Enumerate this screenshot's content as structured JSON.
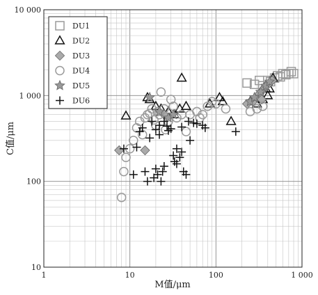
{
  "chart_data": {
    "type": "scatter",
    "title": "",
    "xlabel": "M值/μm",
    "ylabel": "C值/μm",
    "x_scale": "log",
    "y_scale": "log",
    "xlim": [
      1,
      1000
    ],
    "ylim": [
      10,
      10000
    ],
    "x_ticks": [
      "1",
      "10",
      "100",
      "1 000"
    ],
    "y_ticks": [
      "10",
      "100",
      "1 000",
      "10 000"
    ],
    "grid": true,
    "legend_position": "top-left",
    "series": [
      {
        "name": "DU1",
        "marker": "square",
        "color": "#9a9a9a",
        "x": [
          230,
          280,
          320,
          350,
          400,
          430,
          480,
          520,
          560,
          600,
          650,
          700,
          750,
          800
        ],
        "y": [
          1400,
          1350,
          1500,
          1300,
          1500,
          1450,
          1600,
          1700,
          1650,
          1800,
          1750,
          1800,
          1900,
          1800
        ]
      },
      {
        "name": "DU2",
        "marker": "triangle",
        "color": "#111111",
        "x": [
          9,
          16,
          17,
          20,
          23,
          28,
          33,
          38,
          40,
          45,
          85,
          110,
          120,
          150,
          250,
          300,
          350,
          380,
          400,
          420,
          460
        ],
        "y": [
          580,
          950,
          900,
          750,
          700,
          650,
          600,
          700,
          1600,
          750,
          800,
          950,
          850,
          500,
          850,
          800,
          900,
          1200,
          1000,
          1200,
          1600
        ]
      },
      {
        "name": "DU3",
        "marker": "diamond",
        "color": "#aaaaaa",
        "x": [
          7.5,
          15,
          25,
          230,
          270,
          300,
          320,
          340,
          360,
          380,
          420,
          450
        ],
        "y": [
          230,
          230,
          600,
          800,
          850,
          950,
          1050,
          900,
          1200,
          1300,
          1400,
          1500
        ]
      },
      {
        "name": "DU4",
        "marker": "circle",
        "color": "#9a9a9a",
        "x": [
          8,
          8.5,
          9,
          10,
          11,
          12,
          13,
          14,
          15,
          16,
          17,
          18,
          19,
          20,
          21,
          22,
          23,
          25,
          26,
          28,
          30,
          32,
          35,
          40,
          45,
          50,
          60,
          65,
          70,
          80,
          90,
          100,
          130,
          250,
          300,
          350
        ],
        "y": [
          65,
          130,
          190,
          240,
          300,
          420,
          500,
          350,
          550,
          600,
          620,
          700,
          520,
          450,
          650,
          600,
          1100,
          700,
          400,
          500,
          900,
          750,
          550,
          600,
          380,
          600,
          650,
          550,
          600,
          750,
          850,
          800,
          700,
          650,
          700,
          750
        ]
      },
      {
        "name": "DU5",
        "marker": "star",
        "color": "#999999",
        "x": [
          17,
          22,
          28,
          32,
          250,
          280,
          330,
          380,
          420
        ],
        "y": [
          950,
          650,
          550,
          600,
          850,
          950,
          1100,
          1300,
          1450
        ]
      },
      {
        "name": "DU6",
        "marker": "plus",
        "color": "#111111",
        "x": [
          8.5,
          11,
          12,
          13,
          14,
          15,
          16,
          17,
          18,
          19,
          20,
          20,
          21,
          22,
          22,
          23,
          24,
          25,
          25,
          27,
          28,
          30,
          32,
          33,
          35,
          35,
          38,
          40,
          40,
          42,
          45,
          48,
          50,
          55,
          60,
          70,
          75,
          170
        ],
        "y": [
          240,
          120,
          250,
          380,
          420,
          130,
          100,
          320,
          500,
          110,
          400,
          140,
          120,
          450,
          350,
          100,
          130,
          500,
          150,
          440,
          390,
          410,
          200,
          170,
          160,
          240,
          190,
          430,
          220,
          130,
          120,
          500,
          300,
          480,
          470,
          450,
          420,
          380
        ]
      }
    ]
  }
}
